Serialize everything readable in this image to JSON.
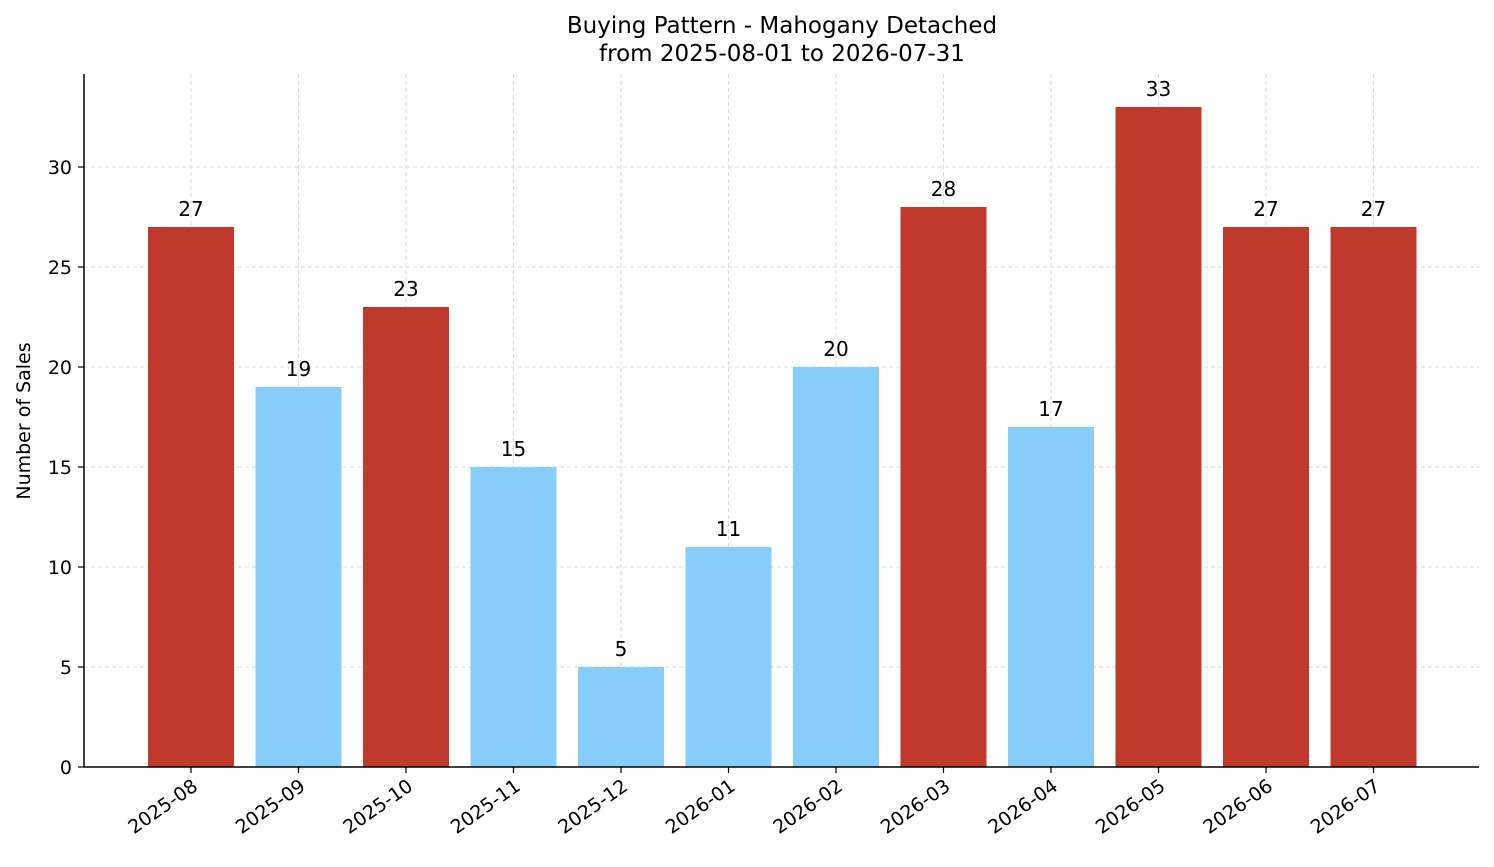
{
  "chart_data": {
    "type": "bar",
    "title": "Buying Pattern - Mahogany Detached",
    "subtitle": "from 2025-08-01 to 2026-07-31",
    "xlabel": "",
    "ylabel": "Number of Sales",
    "categories": [
      "2025-08",
      "2025-09",
      "2025-10",
      "2025-11",
      "2025-12",
      "2026-01",
      "2026-02",
      "2026-03",
      "2026-04",
      "2026-05",
      "2026-06",
      "2026-07"
    ],
    "values": [
      27,
      19,
      23,
      15,
      5,
      11,
      20,
      28,
      17,
      33,
      27,
      27
    ],
    "bar_colors": [
      "#c0392b",
      "#87cefa",
      "#c0392b",
      "#87cefa",
      "#87cefa",
      "#87cefa",
      "#87cefa",
      "#c0392b",
      "#87cefa",
      "#c0392b",
      "#c0392b",
      "#c0392b"
    ],
    "ylim": [
      0,
      34.65
    ],
    "yticks": [
      0,
      5,
      10,
      15,
      20,
      25,
      30
    ],
    "grid": true,
    "data_labels": true,
    "legend": "none"
  }
}
